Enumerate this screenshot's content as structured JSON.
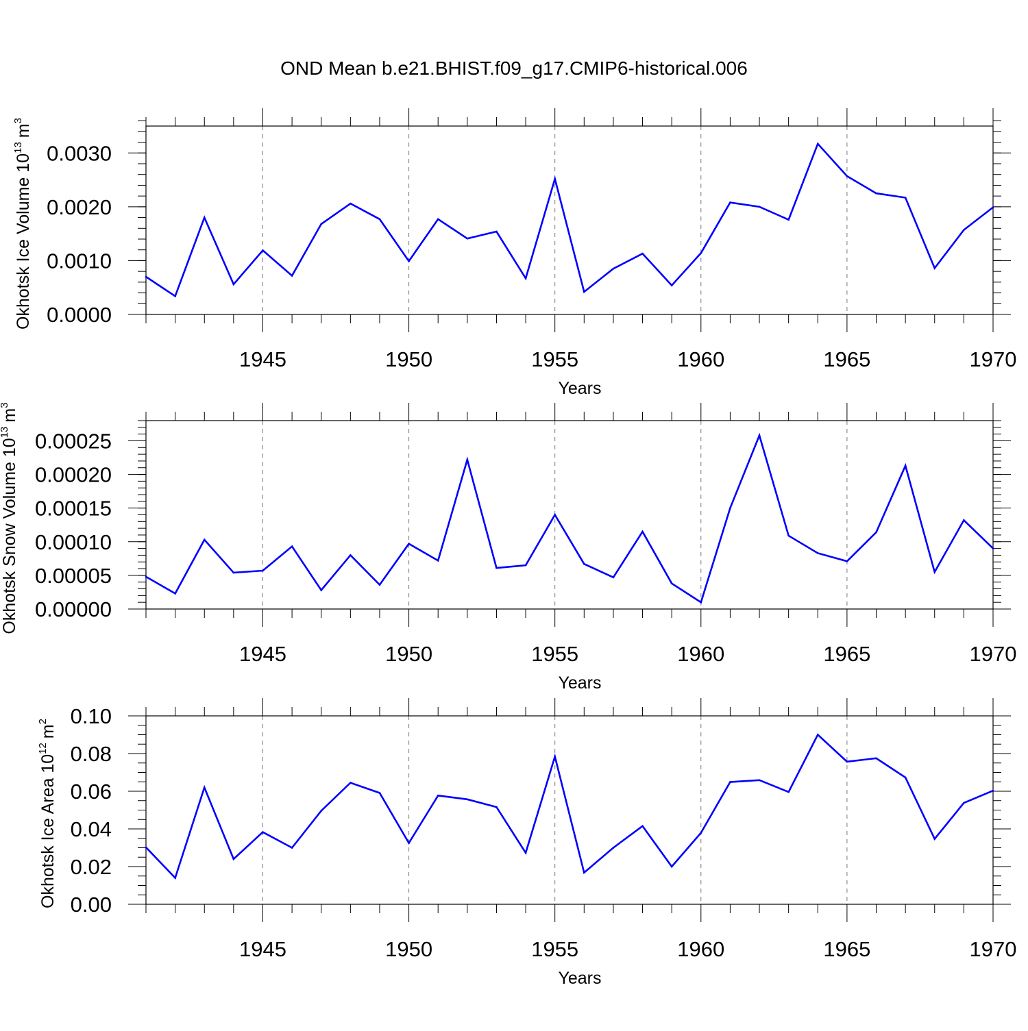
{
  "title": "OND Mean b.e21.BHIST.f09_g17.CMIP6-historical.006",
  "colors": {
    "line": "#0000ff",
    "axis": "#000000",
    "grid": "#777777"
  },
  "chart_data": [
    {
      "type": "line",
      "ylabel_main": "Okhotsk Ice Volume 10",
      "ylabel_exp": "13",
      "ylabel_unit": "m",
      "ylabel_unit_exp": "3",
      "xlabel": "Years",
      "xlim": [
        1941,
        1970
      ],
      "ylim": [
        0.0,
        0.0035
      ],
      "x_ticks": [
        1945,
        1950,
        1955,
        1960,
        1965,
        1970
      ],
      "y_ticks": [
        {
          "value": 0.0,
          "label": "0.0000"
        },
        {
          "value": 0.001,
          "label": "0.0010"
        },
        {
          "value": 0.002,
          "label": "0.0020"
        },
        {
          "value": 0.003,
          "label": "0.0030"
        }
      ],
      "y_minor_step": 0.0002,
      "x": [
        1941,
        1942,
        1943,
        1944,
        1945,
        1946,
        1947,
        1948,
        1949,
        1950,
        1951,
        1952,
        1953,
        1954,
        1955,
        1956,
        1957,
        1958,
        1959,
        1960,
        1961,
        1962,
        1963,
        1964,
        1965,
        1966,
        1967,
        1968,
        1969,
        1970
      ],
      "series": [
        {
          "name": "Ice Volume",
          "values": [
            0.0007,
            0.00034,
            0.0018,
            0.00056,
            0.00119,
            0.00072,
            0.00168,
            0.00206,
            0.00177,
            0.00099,
            0.00177,
            0.00141,
            0.00154,
            0.00067,
            0.00252,
            0.00042,
            0.00085,
            0.00113,
            0.00054,
            0.00114,
            0.00208,
            0.002,
            0.00176,
            0.00317,
            0.00257,
            0.00225,
            0.00217,
            0.00086,
            0.00157,
            0.00199
          ]
        }
      ]
    },
    {
      "type": "line",
      "ylabel_main": "Okhotsk Snow Volume 10",
      "ylabel_exp": "13",
      "ylabel_unit": "m",
      "ylabel_unit_exp": "3",
      "xlabel": "Years",
      "xlim": [
        1941,
        1970
      ],
      "ylim": [
        0.0,
        0.00028
      ],
      "x_ticks": [
        1945,
        1950,
        1955,
        1960,
        1965,
        1970
      ],
      "y_ticks": [
        {
          "value": 0.0,
          "label": "0.00000"
        },
        {
          "value": 5e-05,
          "label": "0.00005"
        },
        {
          "value": 0.0001,
          "label": "0.00010"
        },
        {
          "value": 0.00015,
          "label": "0.00015"
        },
        {
          "value": 0.0002,
          "label": "0.00020"
        },
        {
          "value": 0.00025,
          "label": "0.00025"
        }
      ],
      "y_minor_step": 1e-05,
      "x": [
        1941,
        1942,
        1943,
        1944,
        1945,
        1946,
        1947,
        1948,
        1949,
        1950,
        1951,
        1952,
        1953,
        1954,
        1955,
        1956,
        1957,
        1958,
        1959,
        1960,
        1961,
        1962,
        1963,
        1964,
        1965,
        1966,
        1967,
        1968,
        1969,
        1970
      ],
      "series": [
        {
          "name": "Snow Volume",
          "values": [
            4.8e-05,
            2.3e-05,
            0.000103,
            5.4e-05,
            5.7e-05,
            9.3e-05,
            2.8e-05,
            8e-05,
            3.6e-05,
            9.7e-05,
            7.2e-05,
            0.000222,
            6.1e-05,
            6.5e-05,
            0.00014,
            6.7e-05,
            4.7e-05,
            0.000115,
            3.8e-05,
            1e-05,
            0.00015,
            0.000258,
            0.000109,
            8.3e-05,
            7.1e-05,
            0.000114,
            0.000213,
            5.5e-05,
            0.000132,
            9e-05
          ]
        }
      ]
    },
    {
      "type": "line",
      "ylabel_main": "Okhotsk Ice Area 10",
      "ylabel_exp": "12",
      "ylabel_unit": "m",
      "ylabel_unit_exp": "2",
      "xlabel": "Years",
      "xlim": [
        1941,
        1970
      ],
      "ylim": [
        0.0,
        0.1
      ],
      "x_ticks": [
        1945,
        1950,
        1955,
        1960,
        1965,
        1970
      ],
      "y_ticks": [
        {
          "value": 0.0,
          "label": "0.00"
        },
        {
          "value": 0.02,
          "label": "0.02"
        },
        {
          "value": 0.04,
          "label": "0.04"
        },
        {
          "value": 0.06,
          "label": "0.06"
        },
        {
          "value": 0.08,
          "label": "0.08"
        },
        {
          "value": 0.1,
          "label": "0.10"
        }
      ],
      "y_minor_step": 0.005,
      "x": [
        1941,
        1942,
        1943,
        1944,
        1945,
        1946,
        1947,
        1948,
        1949,
        1950,
        1951,
        1952,
        1953,
        1954,
        1955,
        1956,
        1957,
        1958,
        1959,
        1960,
        1961,
        1962,
        1963,
        1964,
        1965,
        1966,
        1967,
        1968,
        1969,
        1970
      ],
      "series": [
        {
          "name": "Ice Area",
          "values": [
            0.0302,
            0.014,
            0.062,
            0.024,
            0.0383,
            0.03,
            0.0496,
            0.0645,
            0.0591,
            0.0325,
            0.0577,
            0.0557,
            0.0516,
            0.0273,
            0.0784,
            0.0168,
            0.03,
            0.0415,
            0.02,
            0.0379,
            0.0649,
            0.0659,
            0.0596,
            0.09,
            0.0757,
            0.0775,
            0.0673,
            0.0347,
            0.0538,
            0.0603
          ]
        }
      ]
    }
  ]
}
